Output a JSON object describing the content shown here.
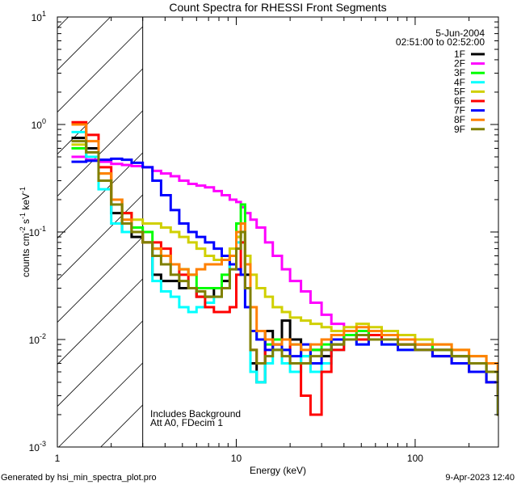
{
  "chart_data": {
    "type": "line",
    "title": "Count Spectra for RHESSI Front Segments",
    "xlabel": "Energy (keV)",
    "ylabel_parts": [
      {
        "t": "counts cm"
      },
      {
        "s": "-2"
      },
      {
        "t": " s"
      },
      {
        "s": "-1"
      },
      {
        "t": " keV"
      },
      {
        "s": "-1"
      }
    ],
    "xscale": "log",
    "yscale": "log",
    "xlim": [
      1,
      292
    ],
    "ylim": [
      0.001,
      10
    ],
    "x_ticks": [
      {
        "value": 1,
        "label": "1"
      },
      {
        "value": 10,
        "label": "10"
      },
      {
        "value": 100,
        "label": "100"
      }
    ],
    "y_ticks": [
      {
        "value": 10,
        "base": "10",
        "exp": "1"
      },
      {
        "value": 1,
        "base": "10",
        "exp": "0"
      },
      {
        "value": 0.1,
        "base": "10",
        "exp": "-1"
      },
      {
        "value": 0.01,
        "base": "10",
        "exp": "-2"
      },
      {
        "value": 0.001,
        "base": "10",
        "exp": "-3"
      }
    ],
    "hatched_region_keV": [
      1,
      3
    ],
    "legend_header": [
      "5-Jun-2004",
      "02:51:00 to 02:52:00"
    ],
    "legend_position": "top-right",
    "annotations": [
      "Includes Background",
      "Att A0, FDecim 1"
    ],
    "energy_bins_keV": [
      1.2,
      1.45,
      1.7,
      2.0,
      2.3,
      2.6,
      3.0,
      3.4,
      3.8,
      4.3,
      4.8,
      5.4,
      6.0,
      6.7,
      7.5,
      8.3,
      9.2,
      10.0,
      10.6,
      11.2,
      12,
      13,
      14.5,
      16,
      18,
      20,
      23,
      26,
      30,
      34,
      40,
      47,
      55,
      65,
      80,
      100,
      125,
      160,
      200,
      250,
      290
    ],
    "series": [
      {
        "name": "1F",
        "color": "#000000",
        "values": [
          0.75,
          0.6,
          0.3,
          0.15,
          0.1,
          0.09,
          0.08,
          0.04,
          0.035,
          0.035,
          0.03,
          0.03,
          0.025,
          0.025,
          0.03,
          0.035,
          0.05,
          0.09,
          0.1,
          0.04,
          0.006,
          0.004,
          0.012,
          0.008,
          0.015,
          0.01,
          0.006,
          0.008,
          0.007,
          0.009,
          0.011,
          0.01,
          0.012,
          0.01,
          0.009,
          0.009,
          0.008,
          0.007,
          0.006,
          0.005,
          0.003
        ]
      },
      {
        "name": "2F",
        "color": "#ff00ff",
        "values": [
          0.5,
          0.47,
          0.45,
          0.43,
          0.42,
          0.41,
          0.4,
          0.37,
          0.35,
          0.33,
          0.3,
          0.28,
          0.27,
          0.26,
          0.24,
          0.22,
          0.2,
          0.19,
          0.17,
          0.15,
          0.13,
          0.11,
          0.08,
          0.06,
          0.045,
          0.035,
          0.028,
          0.022,
          0.017,
          0.014,
          0.012,
          0.011,
          0.011,
          0.012,
          0.01,
          0.009,
          0.008,
          0.007,
          0.006,
          0.005,
          0.004
        ]
      },
      {
        "name": "3F",
        "color": "#00ff00",
        "values": [
          0.6,
          0.5,
          0.3,
          0.2,
          0.15,
          0.11,
          0.1,
          0.07,
          0.06,
          0.05,
          0.045,
          0.04,
          0.03,
          0.03,
          0.03,
          0.04,
          0.06,
          0.12,
          0.18,
          0.05,
          0.012,
          0.01,
          0.009,
          0.01,
          0.008,
          0.009,
          0.007,
          0.008,
          0.009,
          0.01,
          0.011,
          0.012,
          0.011,
          0.01,
          0.01,
          0.009,
          0.008,
          0.007,
          0.006,
          0.005,
          0.004
        ]
      },
      {
        "name": "4F",
        "color": "#00ffff",
        "values": [
          0.85,
          0.5,
          0.25,
          0.12,
          0.1,
          0.1,
          0.08,
          0.035,
          0.028,
          0.025,
          0.02,
          0.018,
          0.02,
          0.022,
          0.025,
          0.03,
          0.05,
          0.08,
          0.08,
          0.02,
          0.005,
          0.004,
          0.006,
          0.008,
          0.006,
          0.005,
          0.007,
          0.005,
          0.006,
          0.008,
          0.01,
          0.009,
          0.01,
          0.009,
          0.008,
          0.008,
          0.007,
          0.006,
          0.005,
          0.004,
          0.002
        ]
      },
      {
        "name": "5F",
        "color": "#d0d000",
        "values": [
          0.65,
          0.55,
          0.35,
          0.2,
          0.15,
          0.13,
          0.12,
          0.12,
          0.11,
          0.1,
          0.09,
          0.08,
          0.07,
          0.06,
          0.055,
          0.06,
          0.07,
          0.09,
          0.1,
          0.06,
          0.04,
          0.03,
          0.025,
          0.02,
          0.018,
          0.016,
          0.015,
          0.014,
          0.013,
          0.012,
          0.013,
          0.014,
          0.013,
          0.012,
          0.011,
          0.01,
          0.009,
          0.008,
          0.007,
          0.006,
          0.005
        ]
      },
      {
        "name": "6F",
        "color": "#ff0000",
        "values": [
          1.05,
          0.8,
          0.4,
          0.2,
          0.15,
          0.1,
          0.08,
          0.08,
          0.07,
          0.05,
          0.04,
          0.03,
          0.025,
          0.02,
          0.018,
          0.018,
          0.02,
          0.04,
          0.08,
          0.03,
          0.008,
          0.006,
          0.01,
          0.009,
          0.01,
          0.006,
          0.003,
          0.002,
          0.005,
          0.008,
          0.01,
          0.01,
          0.011,
          0.01,
          0.009,
          0.008,
          0.007,
          0.006,
          0.005,
          0.004,
          0.003
        ]
      },
      {
        "name": "7F",
        "color": "#0000ff",
        "values": [
          0.45,
          0.46,
          0.47,
          0.48,
          0.47,
          0.44,
          0.4,
          0.3,
          0.22,
          0.16,
          0.12,
          0.1,
          0.09,
          0.08,
          0.07,
          0.06,
          0.05,
          0.045,
          0.04,
          0.02,
          0.012,
          0.01,
          0.008,
          0.009,
          0.008,
          0.007,
          0.009,
          0.006,
          0.008,
          0.01,
          0.01,
          0.009,
          0.01,
          0.009,
          0.008,
          0.008,
          0.007,
          0.006,
          0.005,
          0.004,
          0.002
        ]
      },
      {
        "name": "8F",
        "color": "#ff8000",
        "values": [
          1.0,
          0.7,
          0.35,
          0.2,
          0.13,
          0.1,
          0.08,
          0.07,
          0.06,
          0.05,
          0.045,
          0.04,
          0.045,
          0.05,
          0.05,
          0.055,
          0.06,
          0.1,
          0.12,
          0.05,
          0.02,
          0.012,
          0.01,
          0.009,
          0.01,
          0.009,
          0.008,
          0.009,
          0.01,
          0.011,
          0.012,
          0.013,
          0.012,
          0.011,
          0.01,
          0.009,
          0.009,
          0.008,
          0.007,
          0.006,
          0.004
        ]
      },
      {
        "name": "9F",
        "color": "#808000",
        "values": [
          0.7,
          0.55,
          0.3,
          0.18,
          0.12,
          0.1,
          0.08,
          0.06,
          0.05,
          0.04,
          0.035,
          0.03,
          0.028,
          0.025,
          0.025,
          0.03,
          0.045,
          0.07,
          0.1,
          0.03,
          0.008,
          0.006,
          0.007,
          0.008,
          0.007,
          0.006,
          0.006,
          0.007,
          0.008,
          0.009,
          0.01,
          0.011,
          0.01,
          0.01,
          0.009,
          0.008,
          0.008,
          0.007,
          0.006,
          0.005,
          0.002
        ]
      }
    ]
  },
  "footer": {
    "generated_by": "Generated by hsi_min_spectra_plot.pro",
    "timestamp": "9-Apr-2023 12:40"
  }
}
